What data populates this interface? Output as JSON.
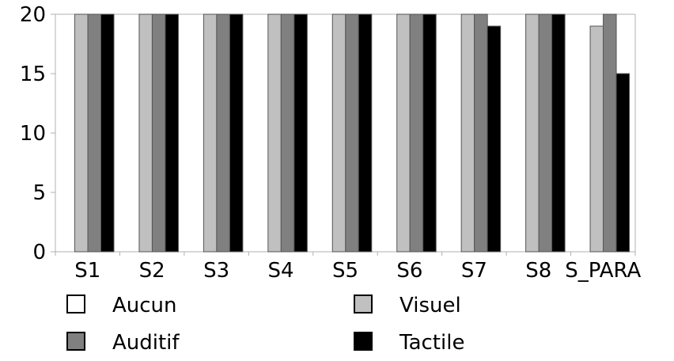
{
  "chart_data": {
    "type": "bar",
    "title": "",
    "xlabel": "",
    "ylabel": "",
    "categories": [
      "S1",
      "S2",
      "S3",
      "S4",
      "S5",
      "S6",
      "S7",
      "S8",
      "S_PARA"
    ],
    "series": [
      {
        "name": "Aucun",
        "color": "#ffffff",
        "values": [
          0,
          0,
          0,
          0,
          0,
          0,
          0,
          0,
          0
        ]
      },
      {
        "name": "Visuel",
        "color": "#c0c0c0",
        "values": [
          20,
          20,
          20,
          20,
          20,
          20,
          20,
          20,
          19
        ]
      },
      {
        "name": "Auditif",
        "color": "#808080",
        "values": [
          20,
          20,
          20,
          20,
          20,
          20,
          20,
          20,
          20
        ]
      },
      {
        "name": "Tactile",
        "color": "#000000",
        "values": [
          20,
          20,
          20,
          20,
          20,
          20,
          19,
          20,
          15
        ]
      }
    ],
    "yticks": [
      0,
      5,
      10,
      15,
      20
    ],
    "ylim": [
      0,
      20
    ],
    "grid": false,
    "legend_position": "bottom"
  }
}
